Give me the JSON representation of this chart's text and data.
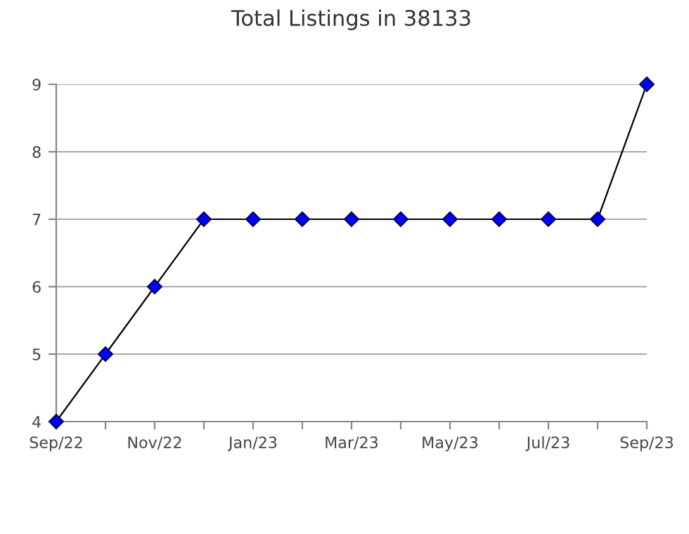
{
  "chart_data": {
    "type": "line",
    "title": "Total Listings in 38133",
    "categories": [
      "Sep/22",
      null,
      "Nov/22",
      null,
      "Jan/23",
      null,
      "Mar/23",
      null,
      "May/23",
      null,
      "Jul/23",
      null,
      "Sep/23"
    ],
    "series": [
      {
        "color": "#0000ff",
        "values": [
          4,
          5,
          6,
          7,
          7,
          7,
          7,
          7,
          7,
          7,
          7,
          7,
          9
        ]
      }
    ],
    "ylim": [
      4,
      9
    ],
    "yticks": [
      4,
      5,
      6,
      7,
      8,
      9
    ],
    "grid": "y",
    "marker": "diamond",
    "line_style": "solid",
    "legend": false
  }
}
